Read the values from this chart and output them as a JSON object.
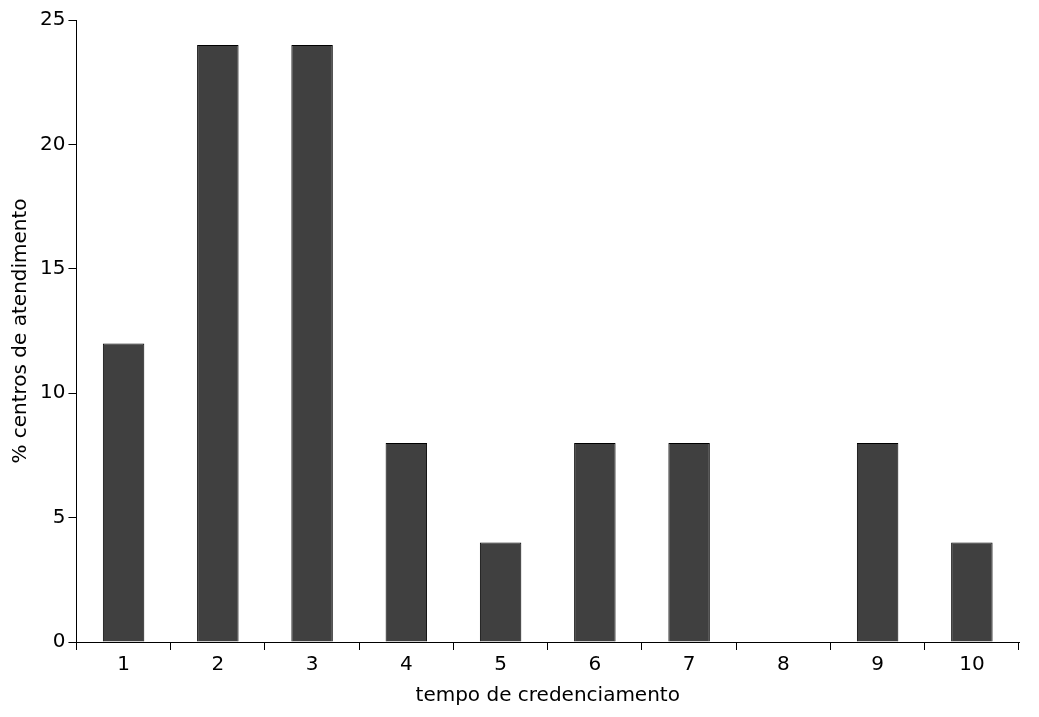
{
  "chart_data": {
    "type": "bar",
    "xlabel": "tempo de credenciamento",
    "ylabel": "% centros de atendimento",
    "categories": [
      "1",
      "2",
      "3",
      "4",
      "5",
      "6",
      "7",
      "8",
      "9",
      "10"
    ],
    "values": [
      12,
      24,
      24,
      8,
      4,
      8,
      8,
      0,
      8,
      4
    ],
    "color": "#404040",
    "ylim": [
      0,
      25
    ],
    "yticks": [
      0,
      5,
      10,
      15,
      20,
      25
    ],
    "grid": false,
    "legend": false
  }
}
